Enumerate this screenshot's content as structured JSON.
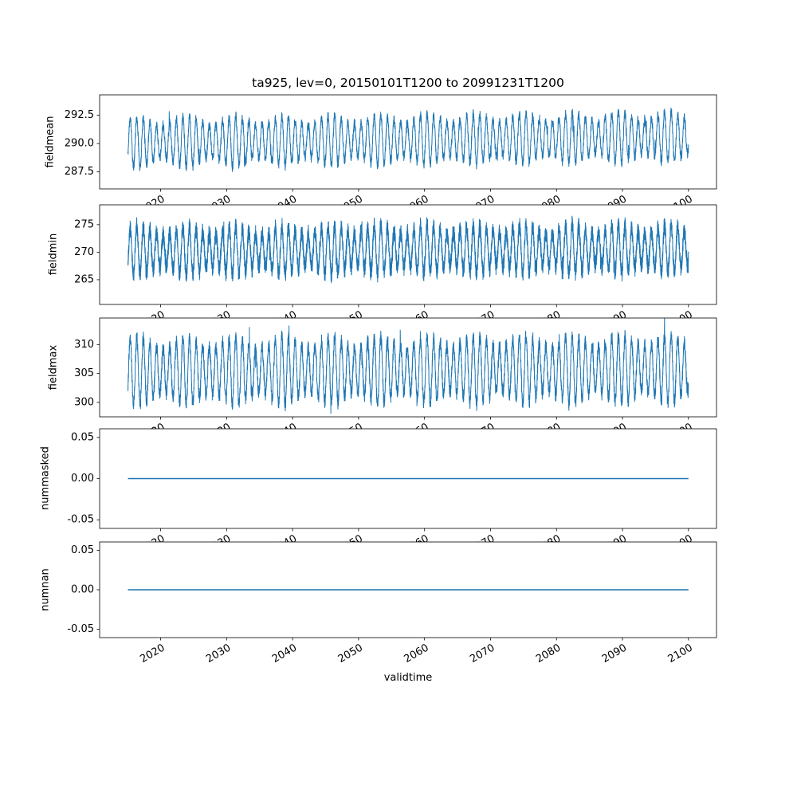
{
  "figure": {
    "title": "ta925, lev=0, 20150101T1200 to 20991231T1200",
    "xlabel": "validtime",
    "line_color": "#1f77b4",
    "background": "#ffffff",
    "spine_color": "#000000",
    "text_color": "#000000"
  },
  "x_axis": {
    "data_start": 2015.0,
    "data_end": 2100.0,
    "xlim": [
      2010.75,
      2104.25
    ],
    "ticks": [
      2020,
      2030,
      2040,
      2050,
      2060,
      2070,
      2080,
      2090,
      2100
    ],
    "tick_rotation_deg": 30
  },
  "chart_data": [
    {
      "type": "line",
      "ylabel": "fieldmean",
      "yticks": [
        "287.5",
        "290.0",
        "292.5"
      ],
      "ylim": [
        286.0,
        294.3
      ],
      "x_range": [
        2015.0,
        2100.0
      ],
      "signal": {
        "kind": "seasonal",
        "mean": 290.1,
        "amplitude": 2.05,
        "noise": 0.55,
        "trend_per_year": 0.006,
        "spike": 0.9,
        "points": 5200,
        "seed": 11
      }
    },
    {
      "type": "line",
      "ylabel": "fieldmin",
      "yticks": [
        "265",
        "270",
        "275"
      ],
      "ylim": [
        260.5,
        278.6
      ],
      "x_range": [
        2015.0,
        2100.0
      ],
      "signal": {
        "kind": "seasonal",
        "mean": 270.2,
        "amplitude": 4.1,
        "noise": 1.9,
        "trend_per_year": 0.005,
        "spike": 2.2,
        "points": 8200,
        "seed": 22
      }
    },
    {
      "type": "line",
      "ylabel": "fieldmax",
      "yticks": [
        "300",
        "305",
        "310"
      ],
      "ylim": [
        297.5,
        314.6
      ],
      "x_range": [
        2015.0,
        2100.0
      ],
      "signal": {
        "kind": "seasonal",
        "mean": 305.4,
        "amplitude": 5.4,
        "noise": 1.5,
        "trend_per_year": 0.005,
        "spike": 2.0,
        "points": 6200,
        "seed": 33
      }
    },
    {
      "type": "line",
      "ylabel": "nummasked",
      "yticks": [
        "-0.05",
        "0.00",
        "0.05"
      ],
      "ylim": [
        -0.0605,
        0.0605
      ],
      "x_range": [
        2015.0,
        2100.0
      ],
      "signal": {
        "kind": "constant",
        "value": 0.0,
        "points": 2,
        "seed": 44
      }
    },
    {
      "type": "line",
      "ylabel": "numnan",
      "yticks": [
        "-0.05",
        "0.00",
        "0.05"
      ],
      "ylim": [
        -0.0605,
        0.0605
      ],
      "x_range": [
        2015.0,
        2100.0
      ],
      "signal": {
        "kind": "constant",
        "value": 0.0,
        "points": 2,
        "seed": 55
      }
    }
  ]
}
